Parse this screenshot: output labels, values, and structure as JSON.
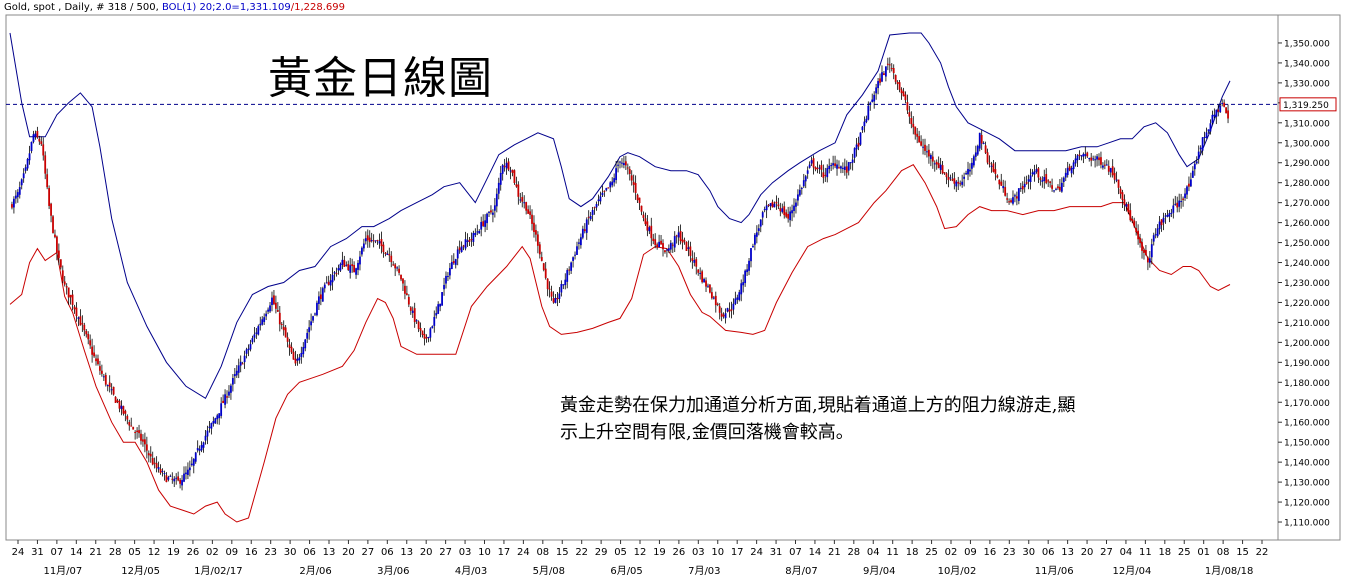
{
  "header": {
    "symbol": "Gold, spot , Daily, # 318 / 500,",
    "indicator": "BOL(1) 20;2.0=",
    "upper_value": "1,331.109",
    "separator": "/",
    "lower_value": "1,228.699"
  },
  "title": "黃金日線圖",
  "annotation_line1": "黃金走勢在保力加通道分析方面,現貼着通道上方的阻力線游走,顯",
  "annotation_line2": "示上升空間有限,金價回落機會較高。",
  "colors": {
    "up_candle": "#0000c8",
    "down_candle": "#c80000",
    "upper_band": "#00008b",
    "lower_band": "#c80000",
    "last_price_line": "#00008b",
    "grid": "#c8c8c8"
  },
  "chart_data": {
    "type": "candlestick",
    "instrument": "Gold, spot",
    "timeframe": "Daily",
    "indicator": {
      "name": "BOL(1)",
      "period": 20,
      "stddev": 2.0,
      "upper": 1331.109,
      "lower": 1228.699
    },
    "last_price": "1,319.250",
    "ylim": [
      1105,
      1360
    ],
    "yticks": [
      1110,
      1120,
      1130,
      1140,
      1150,
      1160,
      1170,
      1180,
      1190,
      1200,
      1210,
      1220,
      1230,
      1240,
      1250,
      1260,
      1270,
      1280,
      1290,
      1300,
      1310,
      1320,
      1330,
      1340,
      1350
    ],
    "ytick_labels": [
      "1,110.000",
      "1,120.000",
      "1,130.000",
      "1,140.000",
      "1,150.000",
      "1,160.000",
      "1,170.000",
      "1,180.000",
      "1,190.000",
      "1,200.000",
      "1,210.000",
      "1,220.000",
      "1,230.000",
      "1,240.000",
      "1,250.000",
      "1,260.000",
      "1,270.000",
      "1,280.000",
      "1,290.000",
      "1,300.000",
      "1,310.000",
      "1,320.000",
      "1,330.000",
      "1,340.000",
      "1,350.000"
    ],
    "xticks": [
      "24",
      "31",
      "07",
      "14",
      "21",
      "28",
      "05",
      "12",
      "19",
      "26",
      "02",
      "09",
      "16",
      "23",
      "30",
      "06",
      "13",
      "20",
      "27",
      "06",
      "13",
      "20",
      "27",
      "03",
      "10",
      "17",
      "24",
      "08",
      "15",
      "22",
      "29",
      "05",
      "12",
      "19",
      "26",
      "03",
      "10",
      "17",
      "24",
      "31",
      "07",
      "14",
      "21",
      "28",
      "04",
      "11",
      "18",
      "25",
      "02",
      "09",
      "16",
      "23",
      "30",
      "06",
      "13",
      "20",
      "27",
      "04",
      "11",
      "18",
      "25",
      "01",
      "08",
      "15",
      "22"
    ],
    "month_labels": [
      {
        "index": 2,
        "label": "11月/07"
      },
      {
        "index": 6,
        "label": "12月/05"
      },
      {
        "index": 10,
        "label": "1月/02/17"
      },
      {
        "index": 15,
        "label": "2月/06"
      },
      {
        "index": 19,
        "label": "3月/06"
      },
      {
        "index": 23,
        "label": "4月/03"
      },
      {
        "index": 27,
        "label": "5月/08"
      },
      {
        "index": 31,
        "label": "6月/05"
      },
      {
        "index": 35,
        "label": "7月/03"
      },
      {
        "index": 40,
        "label": "8月/07"
      },
      {
        "index": 44,
        "label": "9月/04"
      },
      {
        "index": 48,
        "label": "10月/02"
      },
      {
        "index": 53,
        "label": "11月/06"
      },
      {
        "index": 57,
        "label": "12月/04"
      },
      {
        "index": 62,
        "label": "1月/08/18"
      }
    ],
    "close_series": [
      [
        0,
        1268
      ],
      [
        4,
        1274
      ],
      [
        8,
        1286
      ],
      [
        12,
        1304
      ],
      [
        16,
        1300
      ],
      [
        20,
        1268
      ],
      [
        24,
        1245
      ],
      [
        28,
        1228
      ],
      [
        32,
        1220
      ],
      [
        38,
        1205
      ],
      [
        44,
        1190
      ],
      [
        50,
        1178
      ],
      [
        56,
        1168
      ],
      [
        62,
        1158
      ],
      [
        68,
        1150
      ],
      [
        74,
        1138
      ],
      [
        80,
        1132
      ],
      [
        86,
        1130
      ],
      [
        92,
        1136
      ],
      [
        98,
        1150
      ],
      [
        104,
        1160
      ],
      [
        110,
        1172
      ],
      [
        116,
        1185
      ],
      [
        122,
        1197
      ],
      [
        128,
        1210
      ],
      [
        134,
        1222
      ],
      [
        140,
        1205
      ],
      [
        146,
        1188
      ],
      [
        152,
        1205
      ],
      [
        158,
        1222
      ],
      [
        164,
        1232
      ],
      [
        170,
        1240
      ],
      [
        176,
        1236
      ],
      [
        182,
        1252
      ],
      [
        188,
        1250
      ],
      [
        194,
        1244
      ],
      [
        200,
        1232
      ],
      [
        206,
        1214
      ],
      [
        212,
        1200
      ],
      [
        218,
        1214
      ],
      [
        224,
        1235
      ],
      [
        230,
        1248
      ],
      [
        236,
        1252
      ],
      [
        242,
        1260
      ],
      [
        248,
        1268
      ],
      [
        252,
        1290
      ],
      [
        256,
        1288
      ],
      [
        260,
        1274
      ],
      [
        264,
        1268
      ],
      [
        270,
        1250
      ],
      [
        274,
        1232
      ],
      [
        278,
        1218
      ],
      [
        284,
        1232
      ],
      [
        290,
        1248
      ],
      [
        296,
        1262
      ],
      [
        302,
        1272
      ],
      [
        308,
        1280
      ],
      [
        312,
        1292
      ],
      [
        316,
        1286
      ],
      [
        320,
        1276
      ],
      [
        324,
        1262
      ],
      [
        330,
        1250
      ],
      [
        336,
        1246
      ],
      [
        342,
        1254
      ],
      [
        348,
        1244
      ],
      [
        354,
        1232
      ],
      [
        358,
        1226
      ],
      [
        364,
        1214
      ],
      [
        370,
        1218
      ],
      [
        376,
        1234
      ],
      [
        380,
        1250
      ],
      [
        386,
        1266
      ],
      [
        392,
        1270
      ],
      [
        398,
        1262
      ],
      [
        404,
        1276
      ],
      [
        410,
        1290
      ],
      [
        416,
        1284
      ],
      [
        422,
        1290
      ],
      [
        428,
        1286
      ],
      [
        434,
        1300
      ],
      [
        440,
        1320
      ],
      [
        446,
        1334
      ],
      [
        450,
        1340
      ],
      [
        454,
        1330
      ],
      [
        458,
        1320
      ],
      [
        462,
        1306
      ],
      [
        468,
        1296
      ],
      [
        474,
        1290
      ],
      [
        480,
        1282
      ],
      [
        486,
        1280
      ],
      [
        492,
        1288
      ],
      [
        496,
        1304
      ],
      [
        500,
        1292
      ],
      [
        506,
        1280
      ],
      [
        512,
        1270
      ],
      [
        518,
        1278
      ],
      [
        524,
        1286
      ],
      [
        530,
        1280
      ],
      [
        536,
        1276
      ],
      [
        542,
        1288
      ],
      [
        548,
        1294
      ],
      [
        554,
        1292
      ],
      [
        560,
        1290
      ],
      [
        566,
        1282
      ],
      [
        570,
        1270
      ],
      [
        574,
        1260
      ],
      [
        578,
        1248
      ],
      [
        582,
        1240
      ],
      [
        586,
        1256
      ],
      [
        592,
        1264
      ],
      [
        598,
        1270
      ],
      [
        604,
        1280
      ],
      [
        608,
        1296
      ],
      [
        612,
        1306
      ],
      [
        616,
        1314
      ],
      [
        620,
        1320
      ],
      [
        623,
        1312
      ]
    ],
    "upper_band": [
      [
        0,
        1355
      ],
      [
        6,
        1320
      ],
      [
        10,
        1303
      ],
      [
        18,
        1303
      ],
      [
        24,
        1314
      ],
      [
        30,
        1320
      ],
      [
        36,
        1325
      ],
      [
        42,
        1318
      ],
      [
        46,
        1298
      ],
      [
        52,
        1262
      ],
      [
        60,
        1230
      ],
      [
        70,
        1208
      ],
      [
        80,
        1190
      ],
      [
        90,
        1178
      ],
      [
        100,
        1172
      ],
      [
        108,
        1188
      ],
      [
        116,
        1210
      ],
      [
        124,
        1224
      ],
      [
        132,
        1228
      ],
      [
        140,
        1230
      ],
      [
        148,
        1236
      ],
      [
        156,
        1238
      ],
      [
        164,
        1248
      ],
      [
        172,
        1252
      ],
      [
        180,
        1258
      ],
      [
        186,
        1258
      ],
      [
        194,
        1262
      ],
      [
        200,
        1266
      ],
      [
        208,
        1270
      ],
      [
        216,
        1274
      ],
      [
        222,
        1278
      ],
      [
        230,
        1280
      ],
      [
        238,
        1270
      ],
      [
        244,
        1282
      ],
      [
        250,
        1294
      ],
      [
        258,
        1299
      ],
      [
        264,
        1302
      ],
      [
        270,
        1305
      ],
      [
        278,
        1302
      ],
      [
        282,
        1288
      ],
      [
        286,
        1272
      ],
      [
        292,
        1268
      ],
      [
        298,
        1272
      ],
      [
        306,
        1283
      ],
      [
        312,
        1293
      ],
      [
        316,
        1295
      ],
      [
        322,
        1293
      ],
      [
        330,
        1288
      ],
      [
        338,
        1286
      ],
      [
        346,
        1286
      ],
      [
        352,
        1284
      ],
      [
        358,
        1276
      ],
      [
        362,
        1268
      ],
      [
        368,
        1262
      ],
      [
        374,
        1260
      ],
      [
        378,
        1264
      ],
      [
        384,
        1274
      ],
      [
        390,
        1280
      ],
      [
        398,
        1286
      ],
      [
        404,
        1290
      ],
      [
        414,
        1296
      ],
      [
        422,
        1300
      ],
      [
        428,
        1314
      ],
      [
        436,
        1324
      ],
      [
        444,
        1336
      ],
      [
        450,
        1354
      ],
      [
        460,
        1355
      ],
      [
        466,
        1355
      ],
      [
        470,
        1350
      ],
      [
        476,
        1340
      ],
      [
        480,
        1328
      ],
      [
        484,
        1318
      ],
      [
        490,
        1310
      ],
      [
        498,
        1306
      ],
      [
        506,
        1302
      ],
      [
        514,
        1296
      ],
      [
        520,
        1296
      ],
      [
        526,
        1296
      ],
      [
        532,
        1296
      ],
      [
        540,
        1296
      ],
      [
        548,
        1298
      ],
      [
        556,
        1298
      ],
      [
        562,
        1300
      ],
      [
        568,
        1302
      ],
      [
        574,
        1302
      ],
      [
        580,
        1308
      ],
      [
        586,
        1310
      ],
      [
        592,
        1305
      ],
      [
        598,
        1294
      ],
      [
        602,
        1288
      ],
      [
        608,
        1292
      ],
      [
        614,
        1306
      ],
      [
        620,
        1323
      ],
      [
        624,
        1331
      ]
    ],
    "lower_band": [
      [
        0,
        1219
      ],
      [
        6,
        1224
      ],
      [
        10,
        1240
      ],
      [
        14,
        1247
      ],
      [
        18,
        1241
      ],
      [
        24,
        1245
      ],
      [
        28,
        1223
      ],
      [
        32,
        1215
      ],
      [
        38,
        1196
      ],
      [
        44,
        1178
      ],
      [
        52,
        1160
      ],
      [
        58,
        1150
      ],
      [
        64,
        1150
      ],
      [
        70,
        1140
      ],
      [
        76,
        1126
      ],
      [
        82,
        1118
      ],
      [
        88,
        1116
      ],
      [
        94,
        1114
      ],
      [
        100,
        1118
      ],
      [
        106,
        1120
      ],
      [
        110,
        1114
      ],
      [
        116,
        1110
      ],
      [
        122,
        1112
      ],
      [
        130,
        1140
      ],
      [
        136,
        1162
      ],
      [
        142,
        1174
      ],
      [
        148,
        1180
      ],
      [
        154,
        1182
      ],
      [
        160,
        1184
      ],
      [
        170,
        1188
      ],
      [
        176,
        1196
      ],
      [
        182,
        1210
      ],
      [
        188,
        1222
      ],
      [
        192,
        1220
      ],
      [
        196,
        1212
      ],
      [
        200,
        1198
      ],
      [
        208,
        1194
      ],
      [
        216,
        1194
      ],
      [
        222,
        1194
      ],
      [
        228,
        1194
      ],
      [
        236,
        1218
      ],
      [
        244,
        1228
      ],
      [
        254,
        1238
      ],
      [
        262,
        1248
      ],
      [
        266,
        1242
      ],
      [
        272,
        1218
      ],
      [
        276,
        1208
      ],
      [
        282,
        1204
      ],
      [
        290,
        1205
      ],
      [
        298,
        1207
      ],
      [
        306,
        1210
      ],
      [
        312,
        1212
      ],
      [
        318,
        1222
      ],
      [
        324,
        1244
      ],
      [
        330,
        1248
      ],
      [
        336,
        1247
      ],
      [
        342,
        1238
      ],
      [
        348,
        1224
      ],
      [
        354,
        1215
      ],
      [
        358,
        1213
      ],
      [
        366,
        1206
      ],
      [
        374,
        1205
      ],
      [
        380,
        1204
      ],
      [
        386,
        1206
      ],
      [
        392,
        1220
      ],
      [
        400,
        1235
      ],
      [
        408,
        1248
      ],
      [
        416,
        1252
      ],
      [
        422,
        1254
      ],
      [
        428,
        1257
      ],
      [
        434,
        1260
      ],
      [
        442,
        1270
      ],
      [
        448,
        1276
      ],
      [
        456,
        1286
      ],
      [
        462,
        1289
      ],
      [
        468,
        1280
      ],
      [
        474,
        1268
      ],
      [
        478,
        1257
      ],
      [
        484,
        1258
      ],
      [
        490,
        1264
      ],
      [
        496,
        1268
      ],
      [
        502,
        1266
      ],
      [
        510,
        1266
      ],
      [
        518,
        1264
      ],
      [
        526,
        1266
      ],
      [
        534,
        1266
      ],
      [
        542,
        1268
      ],
      [
        550,
        1268
      ],
      [
        558,
        1268
      ],
      [
        564,
        1270
      ],
      [
        570,
        1270
      ],
      [
        576,
        1256
      ],
      [
        582,
        1242
      ],
      [
        588,
        1236
      ],
      [
        594,
        1234
      ],
      [
        600,
        1238
      ],
      [
        604,
        1238
      ],
      [
        608,
        1236
      ],
      [
        614,
        1228
      ],
      [
        618,
        1226
      ],
      [
        624,
        1229
      ]
    ]
  }
}
